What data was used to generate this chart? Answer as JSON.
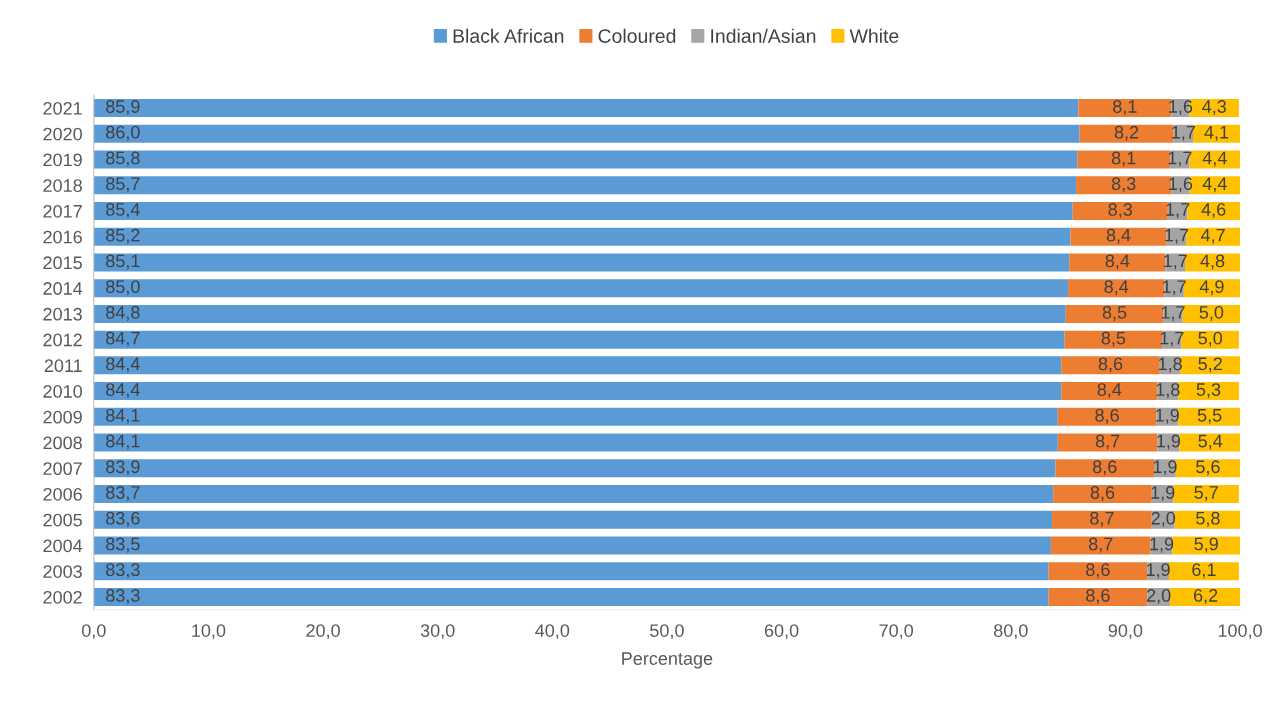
{
  "chart_data": {
    "type": "bar",
    "orientation": "horizontal",
    "stacked": true,
    "xlabel": "Percentage",
    "categories": [
      "2021",
      "2020",
      "2019",
      "2018",
      "2017",
      "2016",
      "2015",
      "2014",
      "2013",
      "2012",
      "2011",
      "2010",
      "2009",
      "2008",
      "2007",
      "2006",
      "2005",
      "2004",
      "2003",
      "2002"
    ],
    "series": [
      {
        "name": "Black African",
        "color": "#5b9bd5",
        "values": [
          85.9,
          86.0,
          85.8,
          85.7,
          85.4,
          85.2,
          85.1,
          85.0,
          84.8,
          84.7,
          84.4,
          84.4,
          84.1,
          84.1,
          83.9,
          83.7,
          83.6,
          83.5,
          83.3,
          83.3
        ],
        "value_labels": [
          "85,9",
          "86,0",
          "85,8",
          "85,7",
          "85,4",
          "85,2",
          "85,1",
          "85,0",
          "84,8",
          "84,7",
          "84,4",
          "84,4",
          "84,1",
          "84,1",
          "83,9",
          "83,7",
          "83,6",
          "83,5",
          "83,3",
          "83,3"
        ]
      },
      {
        "name": "Coloured",
        "color": "#ed7d31",
        "values": [
          8.1,
          8.2,
          8.1,
          8.3,
          8.3,
          8.4,
          8.4,
          8.4,
          8.5,
          8.5,
          8.6,
          8.4,
          8.6,
          8.7,
          8.6,
          8.6,
          8.7,
          8.7,
          8.6,
          8.6
        ],
        "value_labels": [
          "8,1",
          "8,2",
          "8,1",
          "8,3",
          "8,3",
          "8,4",
          "8,4",
          "8,4",
          "8,5",
          "8,5",
          "8,6",
          "8,4",
          "8,6",
          "8,7",
          "8,6",
          "8,6",
          "8,7",
          "8,7",
          "8,6",
          "8,6"
        ]
      },
      {
        "name": "Indian/Asian",
        "color": "#a5a5a5",
        "values": [
          1.6,
          1.7,
          1.7,
          1.6,
          1.7,
          1.7,
          1.7,
          1.7,
          1.7,
          1.7,
          1.8,
          1.8,
          1.9,
          1.9,
          1.9,
          1.9,
          2.0,
          1.9,
          1.9,
          2.0
        ],
        "value_labels": [
          "1,6",
          "1,7",
          "1,7",
          "1,6",
          "1,7",
          "1,7",
          "1,7",
          "1,7",
          "1,7",
          "1,7",
          "1,8",
          "1,8",
          "1,9",
          "1,9",
          "1,9",
          "1,9",
          "2,0",
          "1,9",
          "1,9",
          "2,0"
        ]
      },
      {
        "name": "White",
        "color": "#ffc000",
        "values": [
          4.3,
          4.1,
          4.4,
          4.4,
          4.6,
          4.7,
          4.8,
          4.9,
          5.0,
          5.0,
          5.2,
          5.3,
          5.5,
          5.4,
          5.6,
          5.7,
          5.8,
          5.9,
          6.1,
          6.2
        ],
        "value_labels": [
          "4,3",
          "4,1",
          "4,4",
          "4,4",
          "4,6",
          "4,7",
          "4,8",
          "4,9",
          "5,0",
          "5,0",
          "5,2",
          "5,3",
          "5,5",
          "5,4",
          "5,6",
          "5,7",
          "5,8",
          "5,9",
          "6,1",
          "6,2"
        ]
      }
    ],
    "xlim": [
      0,
      100
    ],
    "xticks": [
      {
        "value": 0,
        "label": "0,0"
      },
      {
        "value": 10,
        "label": "10,0"
      },
      {
        "value": 20,
        "label": "20,0"
      },
      {
        "value": 30,
        "label": "30,0"
      },
      {
        "value": 40,
        "label": "40,0"
      },
      {
        "value": 50,
        "label": "50,0"
      },
      {
        "value": 60,
        "label": "60,0"
      },
      {
        "value": 70,
        "label": "70,0"
      },
      {
        "value": 80,
        "label": "80,0"
      },
      {
        "value": 90,
        "label": "90,0"
      },
      {
        "value": 100,
        "label": "100,0"
      }
    ],
    "grid": false,
    "legend": "top"
  }
}
